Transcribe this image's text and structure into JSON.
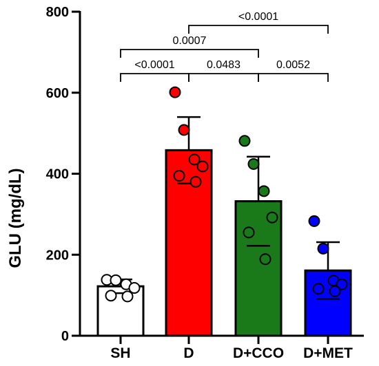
{
  "chart_data": {
    "type": "bar",
    "ylabel": "GLU (mg/dL)",
    "ylim": [
      0,
      800
    ],
    "yticks": [
      0,
      200,
      400,
      600,
      800
    ],
    "categories": [
      "SH",
      "D",
      "D+CCO",
      "D+MET"
    ],
    "means": [
      122,
      458,
      332,
      161
    ],
    "sd": [
      17,
      82,
      110,
      70
    ],
    "bar_colors": [
      "#ffffff",
      "#ff0000",
      "#1a7a1a",
      "#0000ff"
    ],
    "points": [
      [
        138,
        137,
        127,
        118,
        99,
        97
      ],
      [
        601,
        508,
        435,
        418,
        395,
        380
      ],
      [
        481,
        424,
        357,
        292,
        255,
        189
      ],
      [
        283,
        215,
        136,
        127,
        116,
        110
      ]
    ],
    "comparisons": [
      {
        "from": "SH",
        "to": "D",
        "label": "<0.0001"
      },
      {
        "from": "D",
        "to": "D+CCO",
        "label": "0.0483"
      },
      {
        "from": "D+CCO",
        "to": "D+MET",
        "label": "0.0052"
      },
      {
        "from": "SH",
        "to": "D+CCO",
        "label": "0.0007"
      },
      {
        "from": "D",
        "to": "D+MET",
        "label": "<0.0001"
      }
    ]
  }
}
